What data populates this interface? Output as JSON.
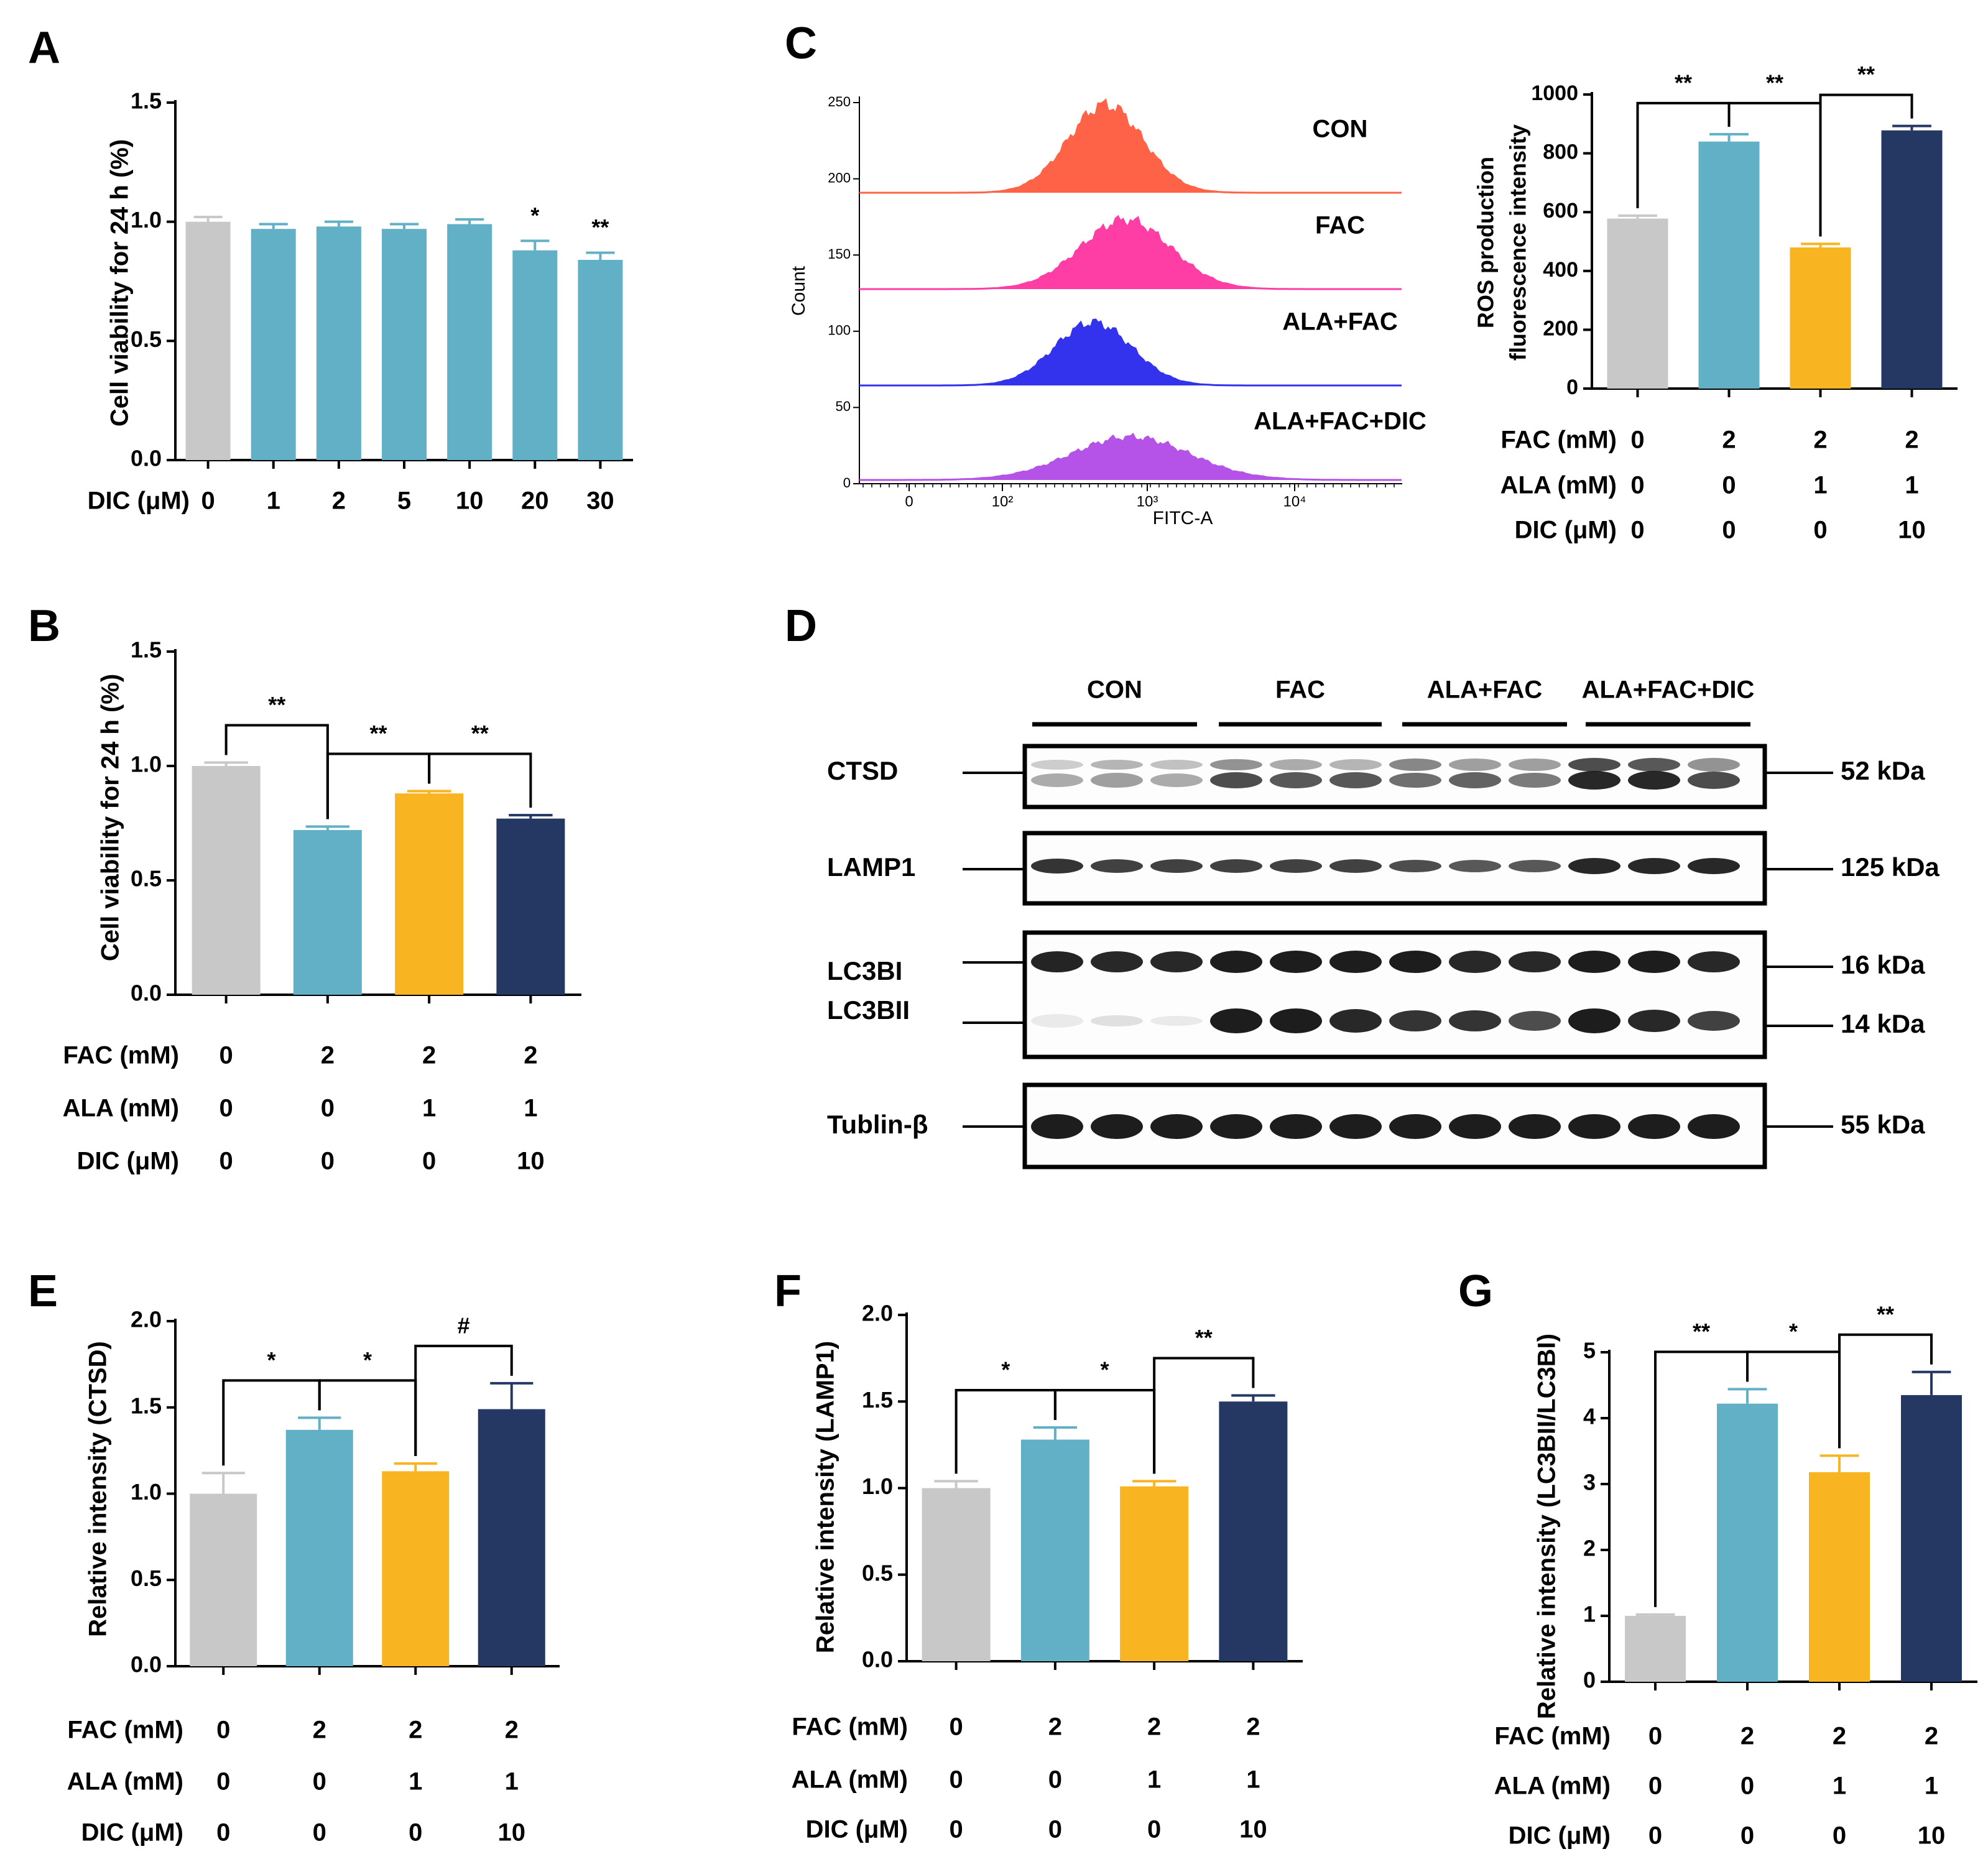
{
  "colors": {
    "grey": "#c8c8c8",
    "teal": "#62b0c6",
    "orange": "#f9b521",
    "navy": "#253863",
    "con_hist": "#ff6347",
    "fac_hist": "#ff3ea5",
    "alafac_hist": "#3333ee",
    "aladic_hist": "#b552e8"
  },
  "panels": {
    "A": {
      "letter": "A",
      "ylabel": "Cell viability for 24 h (%)",
      "xlabel": "DIC  (μM)",
      "yticks": [
        "0.0",
        "0.5",
        "1.0",
        "1.5"
      ],
      "chart_data": {
        "type": "bar",
        "ylim": [
          0,
          1.5
        ],
        "categories": [
          "0",
          "1",
          "2",
          "5",
          "10",
          "20",
          "30"
        ],
        "values": [
          1.0,
          0.97,
          0.98,
          0.97,
          0.99,
          0.88,
          0.84
        ],
        "errors": [
          0.02,
          0.02,
          0.02,
          0.02,
          0.02,
          0.04,
          0.03
        ],
        "colors": [
          "grey",
          "teal",
          "teal",
          "teal",
          "teal",
          "teal",
          "teal"
        ],
        "stars": [
          "",
          "",
          "",
          "",
          "",
          "*",
          "**"
        ]
      }
    },
    "B": {
      "letter": "B",
      "ylabel": "Cell viability for 24 h (%)",
      "yticks": [
        "0.0",
        "0.5",
        "1.0",
        "1.5"
      ],
      "rows": [
        {
          "label": "FAC (mM)",
          "values": [
            "0",
            "2",
            "2",
            "2"
          ]
        },
        {
          "label": "ALA (mM)",
          "values": [
            "0",
            "0",
            "1",
            "1"
          ]
        },
        {
          "label": "DIC (μM)",
          "values": [
            "0",
            "0",
            "0",
            "10"
          ]
        }
      ],
      "chart_data": {
        "type": "bar",
        "ylim": [
          0,
          1.5
        ],
        "values": [
          1.0,
          0.72,
          0.88,
          0.77
        ],
        "errors": [
          0.015,
          0.015,
          0.01,
          0.015
        ],
        "colors": [
          "grey",
          "teal",
          "orange",
          "navy"
        ],
        "brackets": [
          {
            "from": 0,
            "to": 1,
            "label": "**"
          },
          {
            "from": 1,
            "to": 2,
            "label": "**"
          },
          {
            "from": 2,
            "to": 3,
            "label": "**"
          }
        ]
      }
    },
    "C": {
      "letter": "C",
      "hist": {
        "ylabel": "Count",
        "xlabel": "FITC-A",
        "yticks": [
          "0",
          "50",
          "100",
          "150",
          "200",
          "250"
        ],
        "xticks": [
          "0",
          "10²",
          "10³",
          "10⁴"
        ],
        "labels": [
          "CON",
          "FAC",
          "ALA+FAC",
          "ALA+FAC+DIC"
        ]
      },
      "ylabel1": "ROS production",
      "ylabel2": "fluorescence intensity",
      "yticks": [
        "0",
        "200",
        "400",
        "600",
        "800",
        "1000"
      ],
      "rows": [
        {
          "label": "FAC (mM)",
          "values": [
            "0",
            "2",
            "2",
            "2"
          ]
        },
        {
          "label": "ALA (mM)",
          "values": [
            "0",
            "0",
            "1",
            "1"
          ]
        },
        {
          "label": "DIC (μM)",
          "values": [
            "0",
            "0",
            "0",
            "10"
          ]
        }
      ],
      "chart_data": {
        "type": "bar",
        "ylim": [
          0,
          1000
        ],
        "values": [
          578,
          840,
          480,
          878
        ],
        "errors": [
          10,
          25,
          12,
          15
        ],
        "colors": [
          "grey",
          "teal",
          "orange",
          "navy"
        ],
        "brackets": [
          {
            "from": 0,
            "to": 1,
            "label": "**"
          },
          {
            "from": 1,
            "to": 2,
            "label": "**"
          },
          {
            "from": 2,
            "to": 3,
            "label": "**"
          }
        ]
      }
    },
    "D": {
      "letter": "D",
      "groups": [
        "CON",
        "FAC",
        "ALA+FAC",
        "ALA+FAC+DIC"
      ],
      "proteins": [
        "CTSD",
        "LAMP1",
        "LC3BI",
        "LC3BII",
        "Tublin-β"
      ],
      "sizes": [
        "52 kDa",
        "125 kDa",
        "16 kDa",
        "14 kDa",
        "55 kDa"
      ]
    },
    "E": {
      "letter": "E",
      "ylabel": "Relative intensity (CTSD)",
      "yticks": [
        "0.0",
        "0.5",
        "1.0",
        "1.5",
        "2.0"
      ],
      "rows": [
        {
          "label": "FAC (mM)",
          "values": [
            "0",
            "2",
            "2",
            "2"
          ]
        },
        {
          "label": "ALA (mM)",
          "values": [
            "0",
            "0",
            "1",
            "1"
          ]
        },
        {
          "label": "DIC (μM)",
          "values": [
            "0",
            "0",
            "0",
            "10"
          ]
        }
      ],
      "chart_data": {
        "type": "bar",
        "ylim": [
          0,
          2.0
        ],
        "values": [
          1.0,
          1.37,
          1.13,
          1.49
        ],
        "errors": [
          0.12,
          0.07,
          0.045,
          0.15
        ],
        "colors": [
          "grey",
          "teal",
          "orange",
          "navy"
        ],
        "brackets": [
          {
            "from": 0,
            "to": 1,
            "label": "*"
          },
          {
            "from": 1,
            "to": 2,
            "label": "*"
          },
          {
            "from": 2,
            "to": 3,
            "label": "#"
          }
        ]
      }
    },
    "F": {
      "letter": "F",
      "ylabel": "Relative intensity (LAMP1)",
      "yticks": [
        "0.0",
        "0.5",
        "1.0",
        "1.5",
        "2.0"
      ],
      "rows": [
        {
          "label": "FAC (mM)",
          "values": [
            "0",
            "2",
            "2",
            "2"
          ]
        },
        {
          "label": "ALA (mM)",
          "values": [
            "0",
            "0",
            "1",
            "1"
          ]
        },
        {
          "label": "DIC (μM)",
          "values": [
            "0",
            "0",
            "0",
            "10"
          ]
        }
      ],
      "chart_data": {
        "type": "bar",
        "ylim": [
          0,
          2.0
        ],
        "values": [
          1.0,
          1.28,
          1.01,
          1.5
        ],
        "errors": [
          0.04,
          0.07,
          0.03,
          0.035
        ],
        "colors": [
          "grey",
          "teal",
          "orange",
          "navy"
        ],
        "brackets": [
          {
            "from": 0,
            "to": 1,
            "label": "*"
          },
          {
            "from": 1,
            "to": 2,
            "label": "*"
          },
          {
            "from": 2,
            "to": 3,
            "label": "**"
          }
        ]
      }
    },
    "G": {
      "letter": "G",
      "ylabel": "Relative intensity (LC3BII/LC3BI)",
      "yticks": [
        "0",
        "1",
        "2",
        "3",
        "4",
        "5"
      ],
      "rows": [
        {
          "label": "FAC (mM)",
          "values": [
            "0",
            "2",
            "2",
            "2"
          ]
        },
        {
          "label": "ALA (mM)",
          "values": [
            "0",
            "0",
            "1",
            "1"
          ]
        },
        {
          "label": "DIC (μM)",
          "values": [
            "0",
            "0",
            "0",
            "10"
          ]
        }
      ],
      "chart_data": {
        "type": "bar",
        "ylim": [
          0,
          5
        ],
        "values": [
          1.0,
          4.22,
          3.18,
          4.35
        ],
        "errors": [
          0.02,
          0.22,
          0.25,
          0.35
        ],
        "colors": [
          "grey",
          "teal",
          "orange",
          "navy"
        ],
        "brackets": [
          {
            "from": 0,
            "to": 1,
            "label": "**"
          },
          {
            "from": 1,
            "to": 2,
            "label": "*"
          },
          {
            "from": 2,
            "to": 3,
            "label": "**"
          }
        ]
      }
    }
  }
}
